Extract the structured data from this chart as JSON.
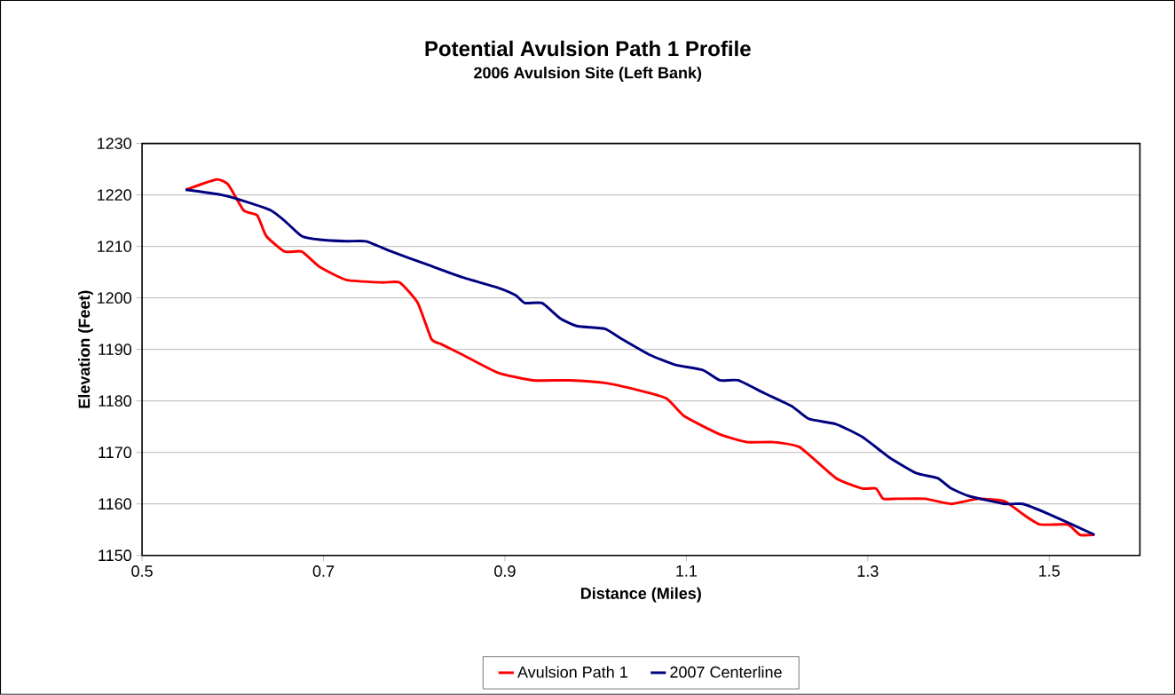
{
  "chart_data": {
    "type": "line",
    "title": "Potential Avulsion Path 1 Profile",
    "subtitle": "2006 Avulsion Site (Left Bank)",
    "xlabel": "Distance (Miles)",
    "ylabel": "Elevation (Feet)",
    "xlim": [
      0.5,
      1.6
    ],
    "xticks": [
      0.5,
      0.7,
      0.9,
      1.1,
      1.3,
      1.5
    ],
    "ylim": [
      1150,
      1230
    ],
    "yticks": [
      1150,
      1160,
      1170,
      1180,
      1190,
      1200,
      1210,
      1220,
      1230
    ],
    "grid": "y",
    "legend": "bottom",
    "marker": "none",
    "line_style": "solid",
    "series": [
      {
        "name": "Avulsion Path 1",
        "color": "#ff0000",
        "x": [
          0.548,
          0.582,
          0.595,
          0.612,
          0.627,
          0.637,
          0.657,
          0.676,
          0.696,
          0.725,
          0.765,
          0.784,
          0.804,
          0.819,
          0.83,
          0.853,
          0.892,
          0.931,
          0.971,
          1.01,
          1.049,
          1.078,
          1.098,
          1.137,
          1.167,
          1.196,
          1.225,
          1.265,
          1.294,
          1.309,
          1.317,
          1.333,
          1.363,
          1.392,
          1.422,
          1.451,
          1.471,
          1.49,
          1.52,
          1.534,
          1.55
        ],
        "values": [
          1221,
          1223,
          1222,
          1217,
          1216,
          1212,
          1209,
          1209,
          1206,
          1203.5,
          1203,
          1203,
          1199,
          1192,
          1191,
          1189,
          1185.5,
          1184,
          1184,
          1183.5,
          1182,
          1180.5,
          1177,
          1173.5,
          1172,
          1172,
          1171,
          1165,
          1163,
          1163,
          1161,
          1161,
          1161,
          1160,
          1161,
          1160.5,
          1158,
          1156,
          1156,
          1154,
          1154
        ]
      },
      {
        "name": "2007 Centerline",
        "color": "#000080",
        "x": [
          0.548,
          0.588,
          0.618,
          0.642,
          0.657,
          0.676,
          0.696,
          0.725,
          0.747,
          0.775,
          0.814,
          0.853,
          0.892,
          0.912,
          0.922,
          0.941,
          0.961,
          0.98,
          1.01,
          1.029,
          1.059,
          1.088,
          1.118,
          1.137,
          1.157,
          1.186,
          1.216,
          1.235,
          1.265,
          1.294,
          1.324,
          1.353,
          1.377,
          1.392,
          1.412,
          1.451,
          1.471,
          1.5,
          1.55
        ],
        "values": [
          1221,
          1220,
          1218.5,
          1217,
          1215,
          1212,
          1211.3,
          1211,
          1211,
          1209,
          1206.5,
          1204,
          1202,
          1200.5,
          1199,
          1199,
          1196,
          1194.5,
          1194,
          1192,
          1189,
          1187,
          1186,
          1184,
          1184,
          1181.5,
          1179,
          1176.5,
          1175.5,
          1173,
          1169,
          1166,
          1165,
          1163,
          1161.5,
          1160,
          1160,
          1158,
          1154
        ]
      }
    ]
  }
}
